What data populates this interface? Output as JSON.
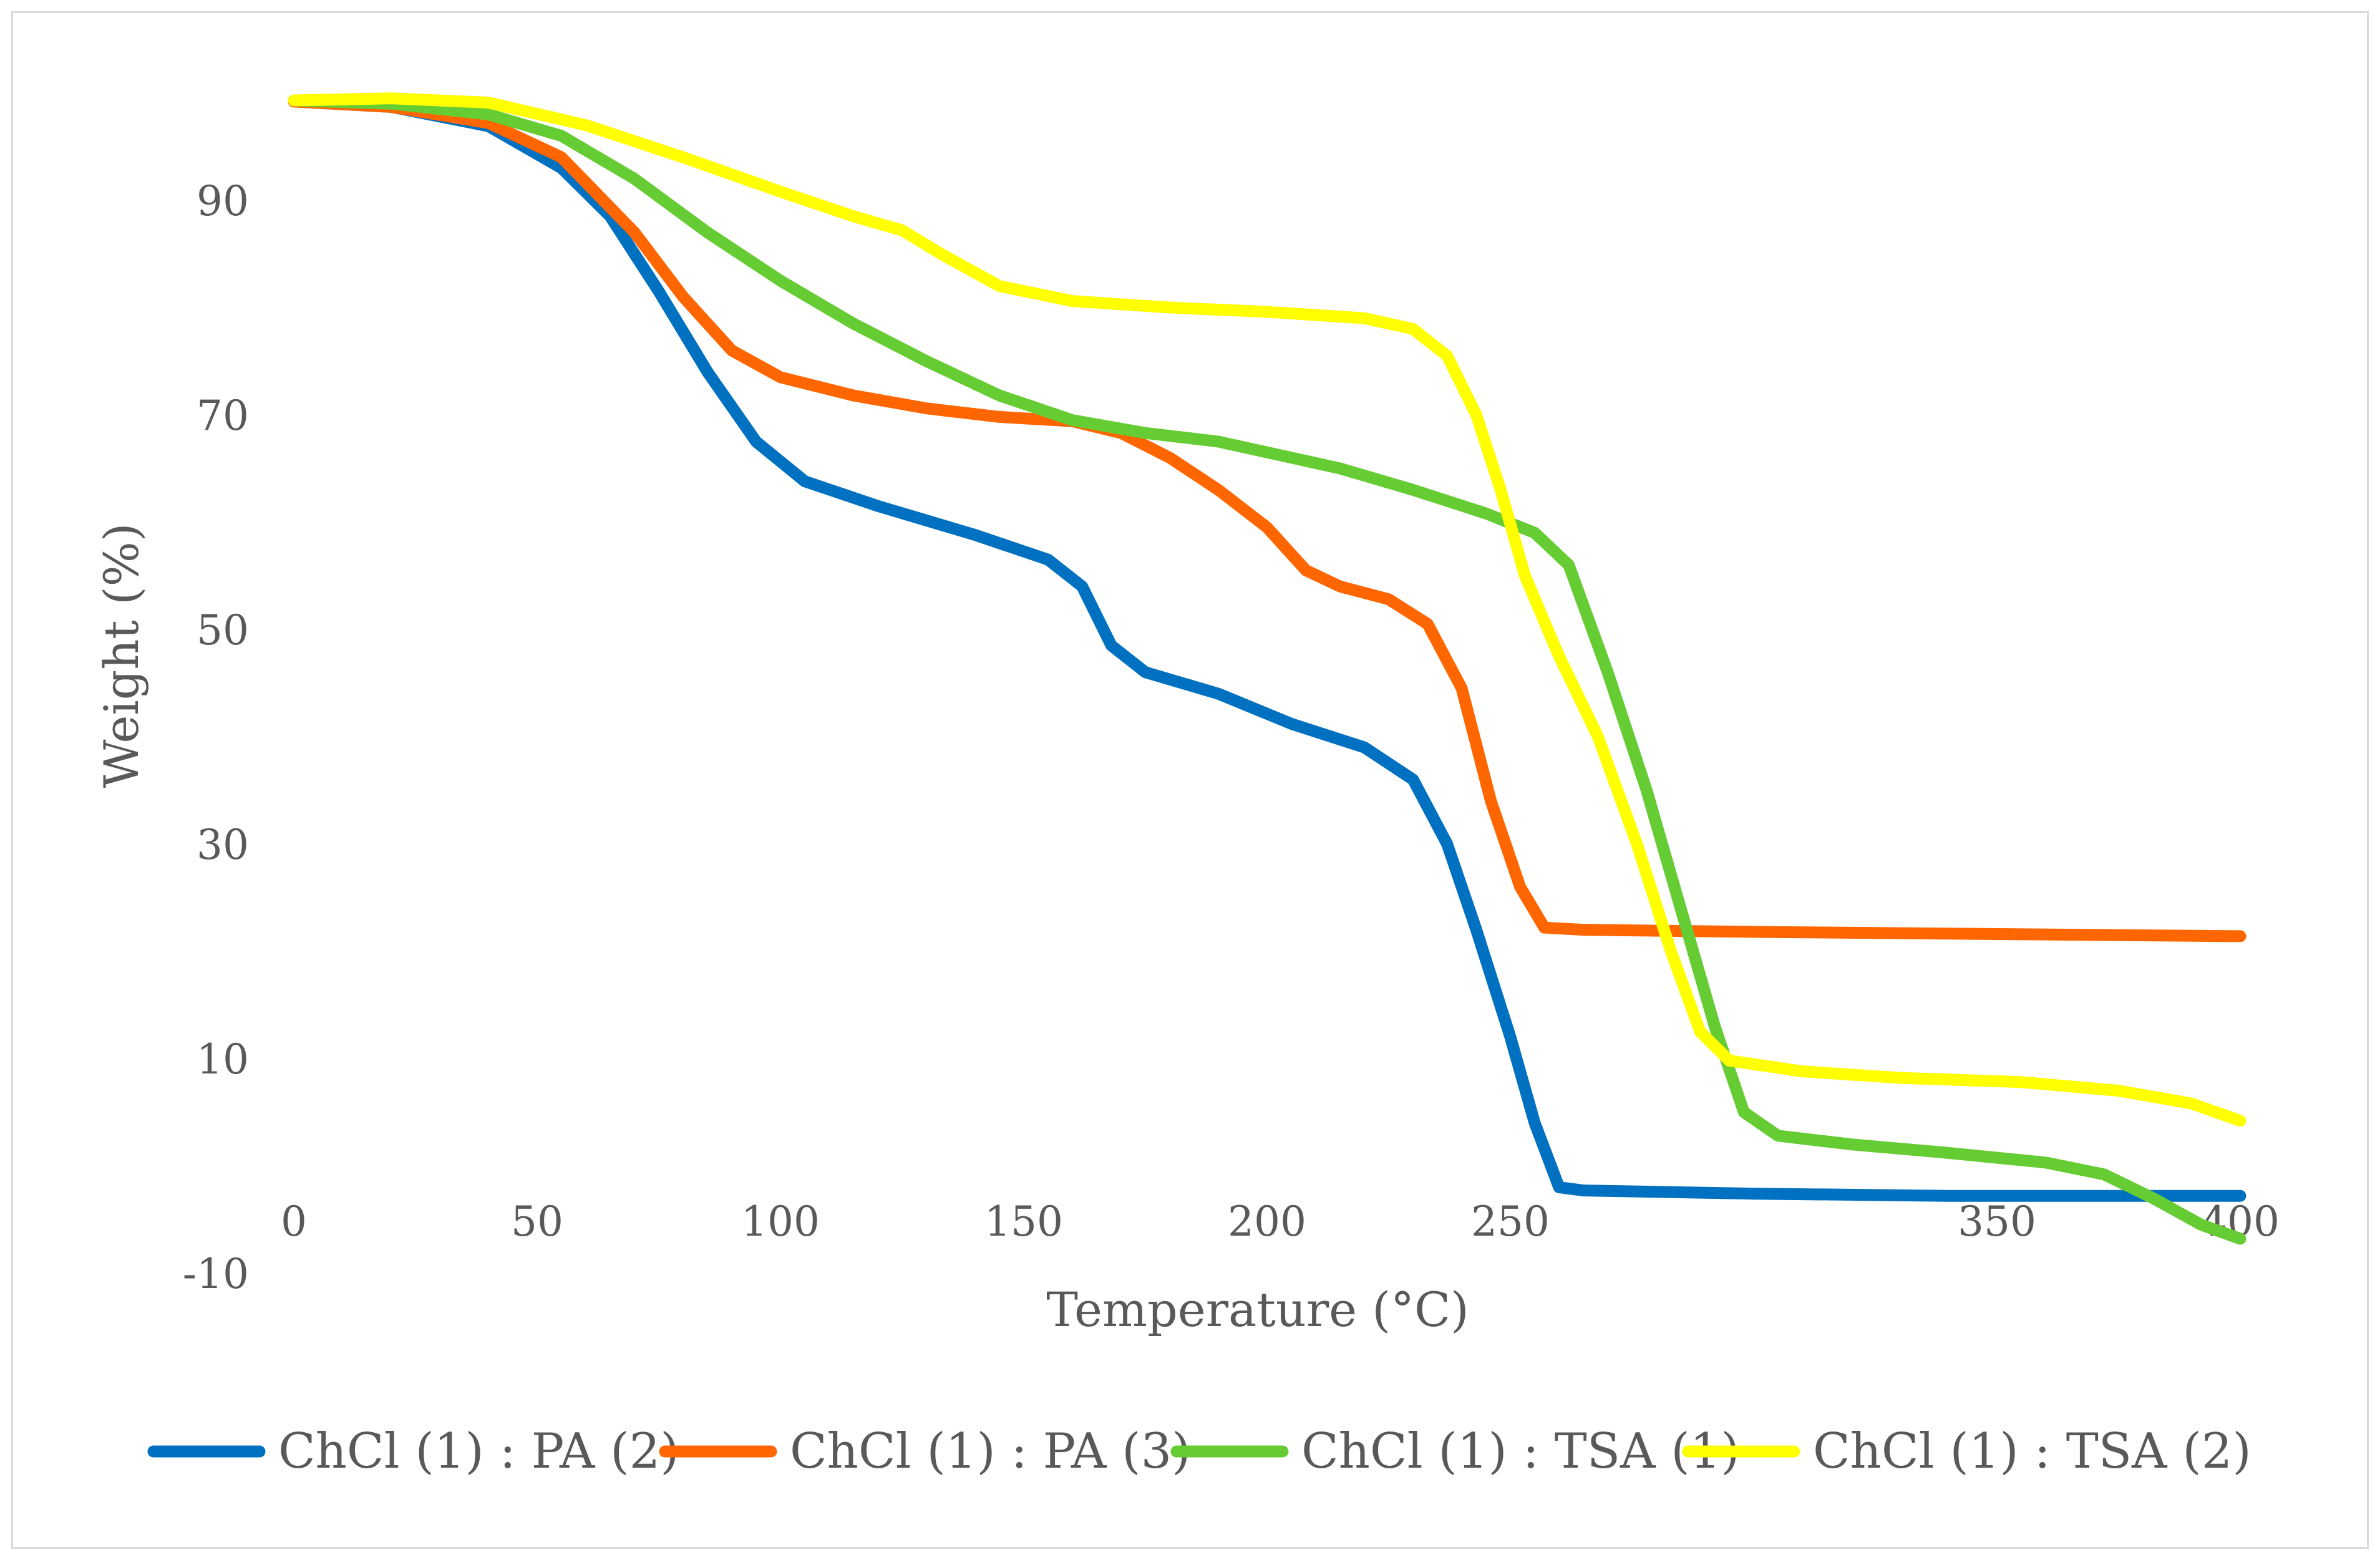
{
  "chart_data": {
    "type": "line",
    "title": "",
    "xlabel": "Temperature (°C)",
    "ylabel": "Weight (%)",
    "xlim": [
      0,
      400
    ],
    "ylim": [
      -10,
      100
    ],
    "x_ticks": [
      0,
      50,
      100,
      150,
      200,
      250,
      350,
      400
    ],
    "x_tick_labels": [
      "0",
      "50",
      "100",
      "150",
      "200",
      "250",
      "350",
      "400"
    ],
    "y_ticks": [
      -10,
      10,
      30,
      50,
      70,
      90
    ],
    "y_tick_labels": [
      "-10",
      "10",
      "30",
      "50",
      "70",
      "90"
    ],
    "grid": false,
    "legend_position": "bottom",
    "series": [
      {
        "name": "ChCl (1) : PA (2)",
        "color": "#0070C0",
        "points": [
          [
            0,
            99.2
          ],
          [
            20,
            98.7
          ],
          [
            40,
            96.9
          ],
          [
            55,
            93
          ],
          [
            65,
            88.5
          ],
          [
            75,
            81.5
          ],
          [
            85,
            74
          ],
          [
            95,
            67.5
          ],
          [
            105,
            63.8
          ],
          [
            120,
            61.5
          ],
          [
            140,
            58.8
          ],
          [
            155,
            56.5
          ],
          [
            162,
            54
          ],
          [
            168,
            48.5
          ],
          [
            175,
            46
          ],
          [
            190,
            44
          ],
          [
            205,
            41.2
          ],
          [
            220,
            39
          ],
          [
            230,
            36
          ],
          [
            237,
            30
          ],
          [
            243,
            22
          ],
          [
            250,
            12
          ],
          [
            255,
            4
          ],
          [
            260,
            -2
          ],
          [
            265,
            -2.3
          ],
          [
            300,
            -2.6
          ],
          [
            340,
            -2.8
          ],
          [
            400,
            -2.8
          ]
        ]
      },
      {
        "name": "ChCl (1) : PA (3)",
        "color": "#FF6600",
        "points": [
          [
            0,
            99.2
          ],
          [
            20,
            98.7
          ],
          [
            40,
            97.2
          ],
          [
            55,
            94
          ],
          [
            70,
            87
          ],
          [
            80,
            81
          ],
          [
            90,
            76
          ],
          [
            100,
            73.5
          ],
          [
            115,
            71.8
          ],
          [
            130,
            70.6
          ],
          [
            145,
            69.8
          ],
          [
            160,
            69.4
          ],
          [
            170,
            68.3
          ],
          [
            180,
            66
          ],
          [
            190,
            63
          ],
          [
            200,
            59.5
          ],
          [
            208,
            55.5
          ],
          [
            215,
            54
          ],
          [
            225,
            52.8
          ],
          [
            233,
            50.5
          ],
          [
            240,
            44.5
          ],
          [
            246,
            34
          ],
          [
            252,
            26
          ],
          [
            257,
            22.2
          ],
          [
            265,
            22
          ],
          [
            300,
            21.8
          ],
          [
            350,
            21.6
          ],
          [
            400,
            21.4
          ]
        ]
      },
      {
        "name": "ChCl (1) : TSA (1)",
        "color": "#66CC33",
        "points": [
          [
            0,
            99.3
          ],
          [
            20,
            99
          ],
          [
            40,
            98
          ],
          [
            55,
            96
          ],
          [
            70,
            92
          ],
          [
            85,
            87
          ],
          [
            100,
            82.5
          ],
          [
            115,
            78.5
          ],
          [
            130,
            75
          ],
          [
            145,
            71.8
          ],
          [
            160,
            69.5
          ],
          [
            175,
            68.3
          ],
          [
            190,
            67.5
          ],
          [
            200,
            66.5
          ],
          [
            215,
            65
          ],
          [
            230,
            63
          ],
          [
            245,
            60.8
          ],
          [
            255,
            59
          ],
          [
            262,
            56
          ],
          [
            270,
            46
          ],
          [
            278,
            35
          ],
          [
            285,
            24
          ],
          [
            292,
            13
          ],
          [
            298,
            5
          ],
          [
            305,
            2.8
          ],
          [
            320,
            2
          ],
          [
            340,
            1.2
          ],
          [
            360,
            0.3
          ],
          [
            372,
            -0.8
          ],
          [
            382,
            -3
          ],
          [
            392,
            -5.5
          ],
          [
            400,
            -6.8
          ]
        ]
      },
      {
        "name": "ChCl (1) : TSA (2)",
        "color": "#FFFF00",
        "points": [
          [
            0,
            99.3
          ],
          [
            20,
            99.5
          ],
          [
            40,
            99.1
          ],
          [
            60,
            97
          ],
          [
            80,
            94
          ],
          [
            100,
            90.8
          ],
          [
            115,
            88.5
          ],
          [
            125,
            87.2
          ],
          [
            133,
            85
          ],
          [
            145,
            82
          ],
          [
            160,
            80.6
          ],
          [
            180,
            80
          ],
          [
            200,
            79.6
          ],
          [
            220,
            79
          ],
          [
            230,
            78
          ],
          [
            237,
            75.5
          ],
          [
            243,
            70
          ],
          [
            248,
            63
          ],
          [
            253,
            55
          ],
          [
            260,
            47.5
          ],
          [
            268,
            40
          ],
          [
            276,
            30
          ],
          [
            283,
            20
          ],
          [
            289,
            12.5
          ],
          [
            295,
            9.8
          ],
          [
            310,
            8.8
          ],
          [
            330,
            8.2
          ],
          [
            355,
            7.8
          ],
          [
            375,
            7
          ],
          [
            390,
            5.8
          ],
          [
            400,
            4.2
          ]
        ]
      }
    ]
  }
}
